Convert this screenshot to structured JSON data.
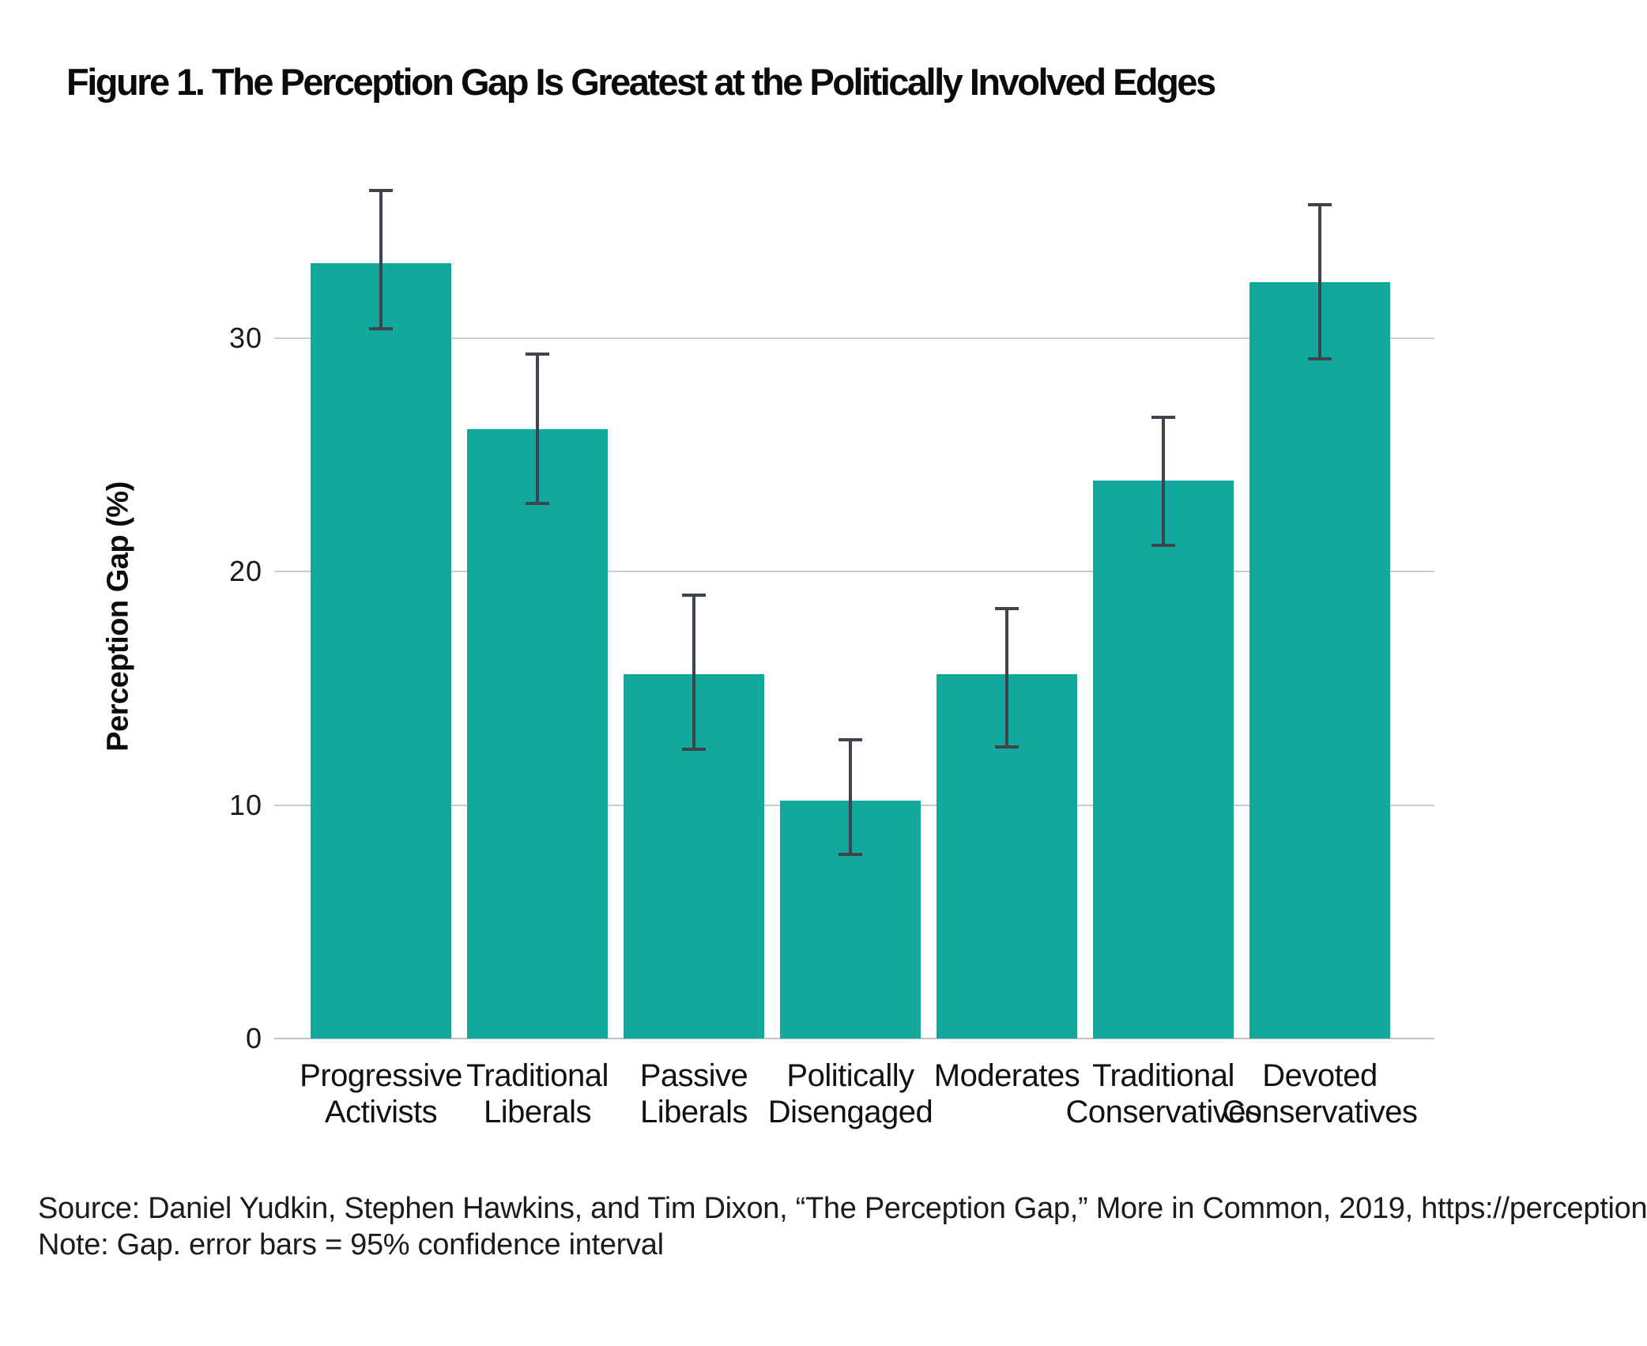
{
  "figure": {
    "title": "Figure 1. The Perception Gap Is Greatest at the Politically Involved Edges",
    "source_line": "Source: Daniel Yudkin, Stephen Hawkins, and Tim Dixon, “The Perception Gap,” More in Common, 2019, https://perceptiongap.us.",
    "note_line": "Note: Gap. error bars = 95% confidence interval"
  },
  "chart_data": {
    "type": "bar",
    "title": "Figure 1. The Perception Gap Is Greatest at the Politically Involved Edges",
    "xlabel": "",
    "ylabel": "Perception Gap (%)",
    "ylim": [
      0,
      38
    ],
    "yticks": [
      0,
      10,
      20,
      30
    ],
    "grid": "horizontal",
    "legend_position": "none",
    "error_bars": "95% confidence interval",
    "bar_color": "#12a89d",
    "error_bar_color": "#3d444c",
    "gridline_color": "#cdcdcd",
    "baseline_color": "#c2c2c2",
    "categories": [
      "Progressive Activists",
      "Traditional Liberals",
      "Passive Liberals",
      "Politically Disengaged",
      "Moderates",
      "Traditional Conservatives",
      "Devoted Conservatives"
    ],
    "category_lines": [
      [
        "Progressive",
        "Activists"
      ],
      [
        "Traditional",
        "Liberals"
      ],
      [
        "Passive",
        "Liberals"
      ],
      [
        "Politically",
        "Disengaged"
      ],
      [
        "Moderates"
      ],
      [
        "Traditional",
        "Conservatives"
      ],
      [
        "Devoted",
        "Conservatives"
      ]
    ],
    "values": [
      33.2,
      26.1,
      15.6,
      10.2,
      15.6,
      23.9,
      32.4
    ],
    "ci_low": [
      30.4,
      22.9,
      12.4,
      7.9,
      12.5,
      21.1,
      29.1
    ],
    "ci_high": [
      36.3,
      29.3,
      19.0,
      12.8,
      18.4,
      26.6,
      35.7
    ]
  }
}
